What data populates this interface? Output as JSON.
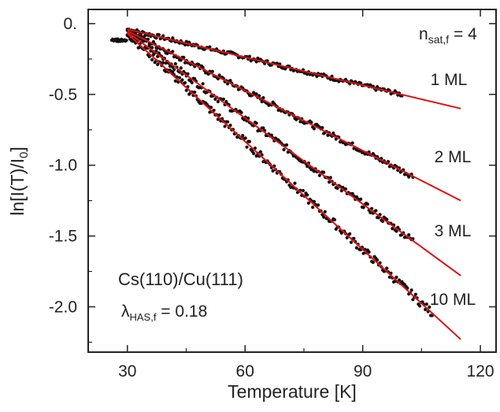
{
  "chart_data": {
    "type": "scatter",
    "xlabel": "Temperature  [K]",
    "ylabel_parts": {
      "pre": "ln[I(T)/I",
      "sub": "0",
      "post": "]"
    },
    "xlim": [
      20,
      124
    ],
    "ylim": [
      -2.32,
      0.1
    ],
    "x_ticks": [
      30,
      60,
      90,
      120
    ],
    "x_tick_labels": [
      "30",
      "60",
      "90",
      "120"
    ],
    "y_ticks": [
      0,
      -0.5,
      -1.0,
      -1.5,
      -2.0
    ],
    "y_tick_labels": [
      "0.",
      "-0.5",
      "-1.0",
      "-1.5",
      "-2.0"
    ],
    "grid": false,
    "fit_color": "#e01010",
    "marker_color": "#111111",
    "series": [
      {
        "name": "1 ML",
        "fit": {
          "x": [
            30,
            115
          ],
          "y": [
            -0.04,
            -0.6
          ]
        },
        "data_xmax": 100
      },
      {
        "name": "2 ML",
        "fit": {
          "x": [
            30,
            115
          ],
          "y": [
            -0.05,
            -1.25
          ]
        },
        "data_xmax": 103
      },
      {
        "name": "3 ML",
        "fit": {
          "x": [
            30,
            115
          ],
          "y": [
            -0.06,
            -1.78
          ]
        },
        "data_xmax": 103
      },
      {
        "name": "10 ML",
        "fit": {
          "x": [
            30,
            115
          ],
          "y": [
            -0.07,
            -2.23
          ]
        },
        "data_xmax": 108
      }
    ],
    "annotations": {
      "nsat": {
        "pre": "n",
        "sub": "sat,f",
        "post": " = 4"
      },
      "system": "Cs(110)/Cu(111)",
      "lambda": {
        "pre": "λ",
        "sub": "HAS,f",
        "post": " = 0.18"
      }
    }
  }
}
